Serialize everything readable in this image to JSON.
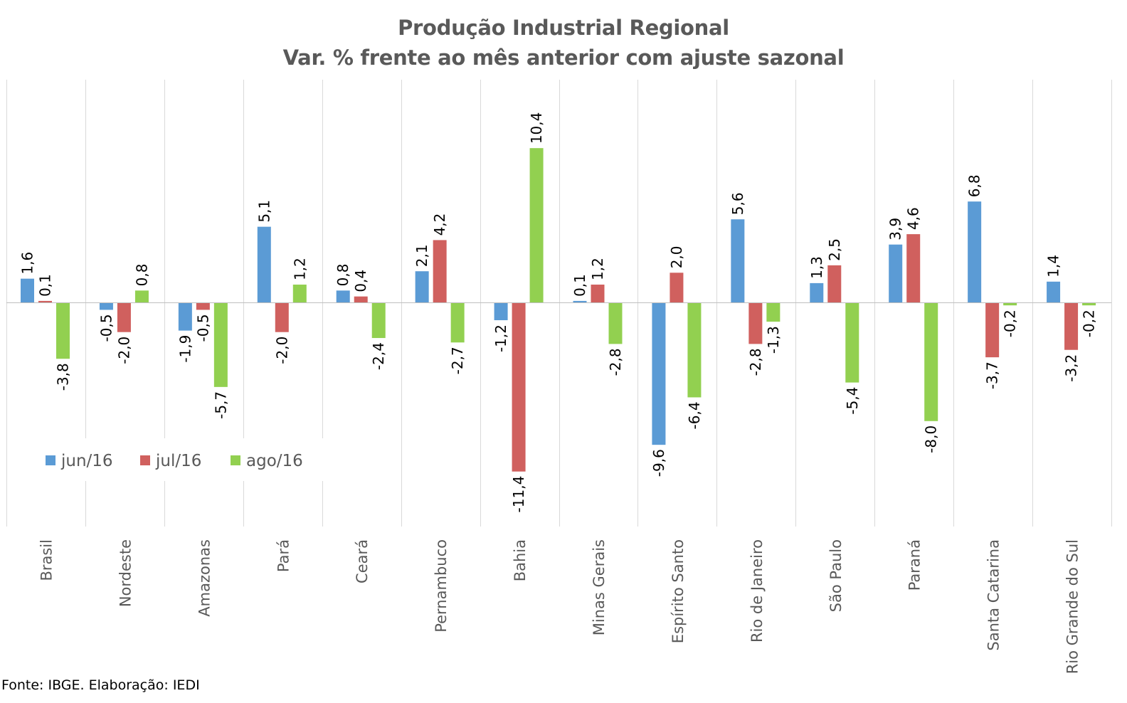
{
  "chart_data": {
    "type": "bar",
    "title": "Produção Industrial Regional",
    "subtitle": "Var. % frente ao mês anterior com ajuste sazonal",
    "categories": [
      "Brasil",
      "Nordeste",
      "Amazonas",
      "Pará",
      "Ceará",
      "Pernambuco",
      "Bahia",
      "Minas Gerais",
      "Espírito Santo",
      "Rio de Janeiro",
      "São Paulo",
      "Paraná",
      "Santa Catarina",
      "Rio Grande do Sul"
    ],
    "series": [
      {
        "name": "jun/16",
        "color": "#5b9bd5",
        "values": [
          1.6,
          -0.5,
          -1.9,
          5.1,
          0.8,
          2.1,
          -1.2,
          0.1,
          -9.6,
          5.6,
          1.3,
          3.9,
          6.8,
          1.4
        ],
        "labels": [
          "1,6",
          "-0,5",
          "-1,9",
          "5,1",
          "0,8",
          "2,1",
          "-1,2",
          "0,1",
          "-9,6",
          "5,6",
          "1,3",
          "3,9",
          "6,8",
          "1,4"
        ]
      },
      {
        "name": "jul/16",
        "color": "#d0605e",
        "values": [
          0.1,
          -2.0,
          -0.5,
          -2.0,
          0.4,
          4.2,
          -11.4,
          1.2,
          2.0,
          -2.8,
          2.5,
          4.6,
          -3.7,
          -3.2
        ],
        "labels": [
          "0,1",
          "-2,0",
          "-0,5",
          "-2,0",
          "0,4",
          "4,2",
          "-11,4",
          "1,2",
          "2,0",
          "-2,8",
          "2,5",
          "4,6",
          "-3,7",
          "-3,2"
        ]
      },
      {
        "name": "ago/16",
        "color": "#92d050",
        "values": [
          -3.8,
          0.8,
          -5.7,
          1.2,
          -2.4,
          -2.7,
          10.4,
          -2.8,
          -6.4,
          -1.3,
          -5.4,
          -8.0,
          -0.2,
          -0.2
        ],
        "labels": [
          "-3,8",
          "0,8",
          "-5,7",
          "1,2",
          "-2,4",
          "-2,7",
          "10,4",
          "-2,8",
          "-6,4",
          "-1,3",
          "-5,4",
          "-8,0",
          "-0,2",
          "-0,2"
        ]
      }
    ],
    "ylim": [
      -15,
      15
    ],
    "grid": "vertical category separators",
    "legend": "left",
    "source": "Fonte: IBGE. Elaboração: IEDI"
  }
}
